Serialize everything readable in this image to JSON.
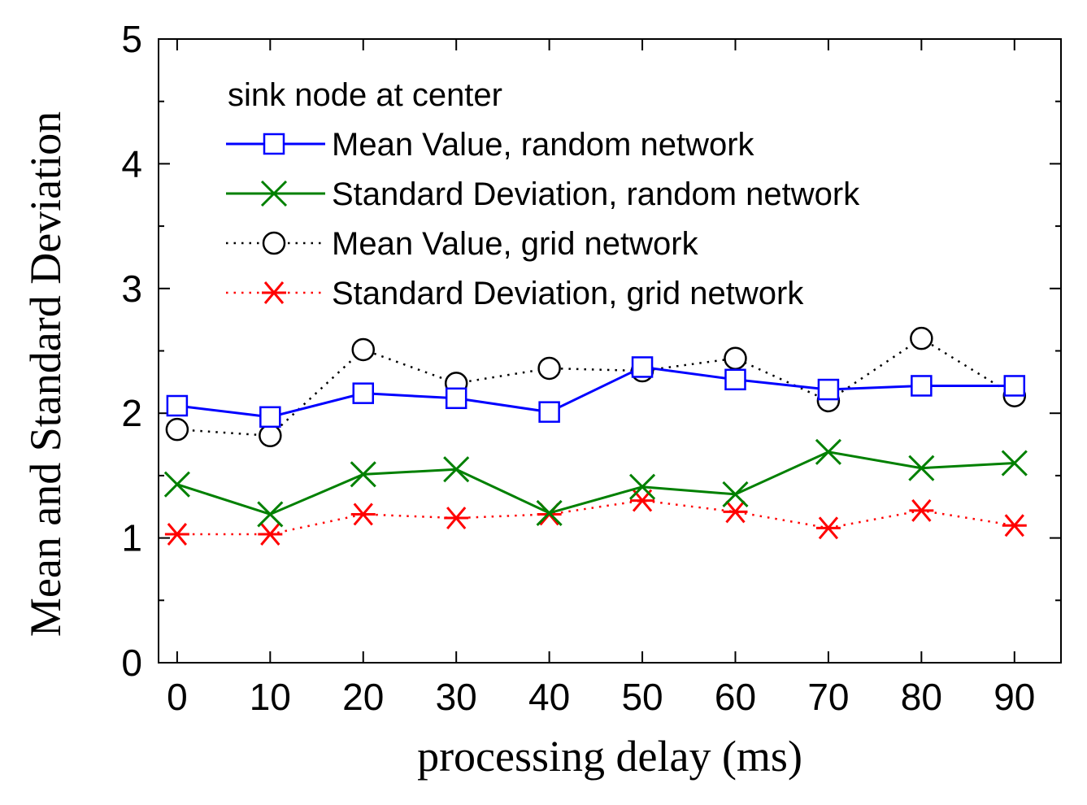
{
  "chart_data": {
    "type": "line",
    "xlabel": "processing delay (ms)",
    "ylabel": "Mean and Standard Deviation",
    "xlim": [
      -2,
      95
    ],
    "ylim": [
      0,
      5
    ],
    "x": [
      0,
      10,
      20,
      30,
      40,
      50,
      60,
      70,
      80,
      90
    ],
    "x_ticks": [
      "0",
      "10",
      "20",
      "30",
      "40",
      "50",
      "60",
      "70",
      "80",
      "90"
    ],
    "y_ticks": [
      "0",
      "1",
      "2",
      "3",
      "4",
      "5"
    ],
    "legend_title": "sink node at center",
    "legend_position": "top-left",
    "grid": false,
    "series": [
      {
        "name": "Mean Value, random network",
        "color": "#0000ff",
        "line": "solid",
        "marker": "square",
        "values": [
          2.06,
          1.97,
          2.16,
          2.12,
          2.01,
          2.37,
          2.27,
          2.19,
          2.22,
          2.22
        ]
      },
      {
        "name": "Standard Deviation, random network",
        "color": "#008000",
        "line": "solid",
        "marker": "x",
        "values": [
          1.43,
          1.19,
          1.51,
          1.55,
          1.2,
          1.41,
          1.35,
          1.69,
          1.56,
          1.6
        ]
      },
      {
        "name": "Mean Value, grid network",
        "color": "#000000",
        "line": "dotted",
        "marker": "circle",
        "values": [
          1.87,
          1.82,
          2.51,
          2.24,
          2.36,
          2.34,
          2.44,
          2.1,
          2.6,
          2.14
        ]
      },
      {
        "name": "Standard Deviation, grid network",
        "color": "#ff0000",
        "line": "dotted",
        "marker": "asterisk",
        "values": [
          1.03,
          1.03,
          1.19,
          1.16,
          1.19,
          1.3,
          1.21,
          1.08,
          1.22,
          1.1
        ]
      }
    ]
  }
}
